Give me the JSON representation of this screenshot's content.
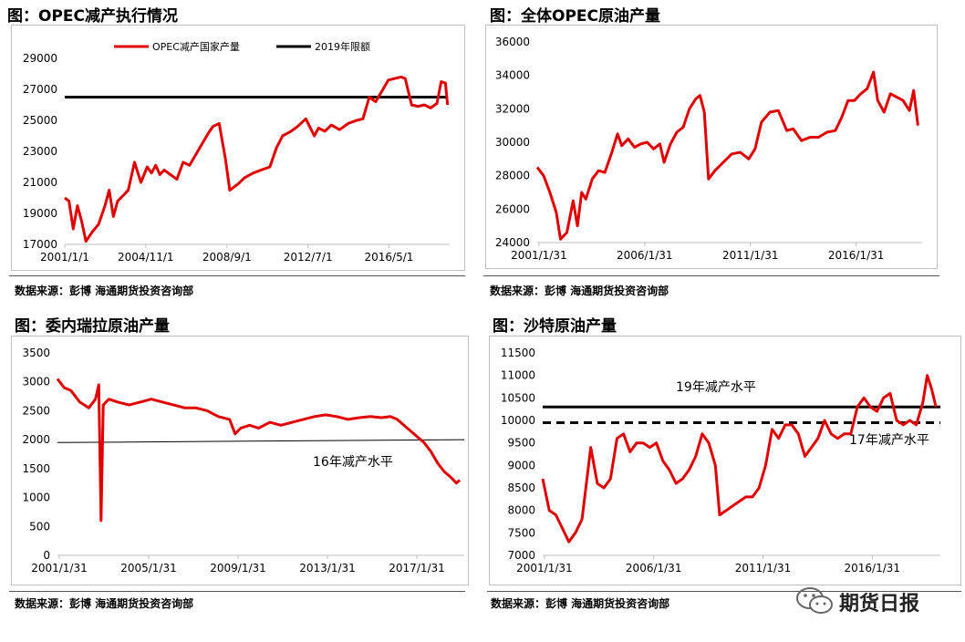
{
  "panels": [
    {
      "title": "图：OPEC减产执行情况",
      "source": "数据来源：彭博   海通期货投资咨询部",
      "chart_data": {
        "type": "line",
        "title": "",
        "ylim": [
          17000,
          29000
        ],
        "yticks": [
          17000,
          19000,
          21000,
          23000,
          25000,
          27000,
          29000
        ],
        "xlim": [
          2001.0,
          2019.2
        ],
        "xticks": [
          {
            "x": 2001.0,
            "label": "2001/1/1"
          },
          {
            "x": 2004.83,
            "label": "2004/11/1"
          },
          {
            "x": 2008.67,
            "label": "2008/9/1"
          },
          {
            "x": 2012.5,
            "label": "2012/7/1"
          },
          {
            "x": 2016.33,
            "label": "2016/5/1"
          }
        ],
        "legend": "top",
        "series": [
          {
            "name": "OPEC减产国家产量",
            "color": "#e00000",
            "x": [
              2001.0,
              2001.2,
              2001.4,
              2001.6,
              2001.8,
              2002.0,
              2002.3,
              2002.6,
              2002.9,
              2003.1,
              2003.3,
              2003.5,
              2003.8,
              2004.0,
              2004.3,
              2004.6,
              2004.9,
              2005.1,
              2005.3,
              2005.5,
              2005.7,
              2006.0,
              2006.3,
              2006.6,
              2006.9,
              2007.2,
              2007.5,
              2007.8,
              2008.0,
              2008.3,
              2008.6,
              2008.8,
              2009.0,
              2009.2,
              2009.5,
              2009.9,
              2010.3,
              2010.7,
              2011.0,
              2011.3,
              2011.7,
              2012.0,
              2012.4,
              2012.8,
              2013.0,
              2013.3,
              2013.6,
              2014.0,
              2014.4,
              2014.8,
              2015.1,
              2015.4,
              2015.7,
              2016.0,
              2016.3,
              2016.6,
              2016.9,
              2017.1,
              2017.4,
              2017.7,
              2018.0,
              2018.3,
              2018.6,
              2018.8,
              2019.0,
              2019.1
            ],
            "y": [
              20000,
              19800,
              18000,
              19500,
              18500,
              17200,
              17800,
              18300,
              19500,
              20500,
              18800,
              19800,
              20200,
              20500,
              22300,
              21000,
              22000,
              21600,
              22100,
              21500,
              21800,
              21500,
              21200,
              22300,
              22100,
              22800,
              23500,
              24200,
              24600,
              24800,
              22500,
              20500,
              20700,
              20900,
              21300,
              21600,
              21800,
              22000,
              23200,
              24000,
              24300,
              24600,
              25100,
              24000,
              24500,
              24300,
              24700,
              24400,
              24800,
              25000,
              25100,
              26500,
              26200,
              26900,
              27600,
              27700,
              27800,
              27700,
              26000,
              25900,
              26000,
              25800,
              26100,
              27500,
              27400,
              26000
            ]
          },
          {
            "name": "2019年限额",
            "color": "#000000",
            "x": [
              2001.0,
              2019.1
            ],
            "y": [
              26500,
              26500
            ]
          }
        ]
      }
    },
    {
      "title": "图：全体OPEC原油产量",
      "source": "数据来源：彭博   海通期货投资咨询部",
      "chart_data": {
        "type": "line",
        "title": "",
        "ylim": [
          24000,
          36000
        ],
        "yticks": [
          24000,
          26000,
          28000,
          30000,
          32000,
          34000,
          36000
        ],
        "xlim": [
          2001.0,
          2019.2
        ],
        "xticks": [
          {
            "x": 2001.08,
            "label": "2001/1/31"
          },
          {
            "x": 2006.08,
            "label": "2006/1/31"
          },
          {
            "x": 2011.08,
            "label": "2011/1/31"
          },
          {
            "x": 2016.08,
            "label": "2016/1/31"
          }
        ],
        "series": [
          {
            "name": "",
            "color": "#e00000",
            "x": [
              2001.0,
              2001.3,
              2001.6,
              2001.9,
              2002.1,
              2002.4,
              2002.7,
              2002.9,
              2003.1,
              2003.3,
              2003.6,
              2003.9,
              2004.2,
              2004.5,
              2004.8,
              2005.0,
              2005.3,
              2005.6,
              2005.9,
              2006.2,
              2006.5,
              2006.8,
              2007.0,
              2007.3,
              2007.6,
              2007.9,
              2008.2,
              2008.5,
              2008.7,
              2008.9,
              2009.1,
              2009.4,
              2009.8,
              2010.2,
              2010.6,
              2011.0,
              2011.3,
              2011.6,
              2012.0,
              2012.4,
              2012.8,
              2013.1,
              2013.5,
              2013.9,
              2014.3,
              2014.7,
              2015.1,
              2015.4,
              2015.7,
              2016.0,
              2016.3,
              2016.6,
              2016.9,
              2017.1,
              2017.4,
              2017.7,
              2018.0,
              2018.3,
              2018.6,
              2018.8,
              2019.0
            ],
            "y": [
              28500,
              28000,
              27000,
              25800,
              24200,
              24600,
              26500,
              25000,
              27000,
              26600,
              27800,
              28300,
              28200,
              29300,
              30500,
              29800,
              30200,
              29700,
              29900,
              30000,
              29600,
              29900,
              28800,
              29900,
              30600,
              30900,
              32000,
              32600,
              32800,
              31800,
              27800,
              28300,
              28800,
              29300,
              29400,
              29000,
              29600,
              31200,
              31800,
              31900,
              30700,
              30800,
              30100,
              30300,
              30300,
              30600,
              30700,
              31500,
              32500,
              32500,
              32900,
              33200,
              34200,
              32500,
              31800,
              32900,
              32700,
              32500,
              31900,
              33100,
              31000
            ]
          }
        ]
      }
    },
    {
      "title": "图：委内瑞拉原油产量",
      "source": "数据来源：彭博   海通期货投资咨询部",
      "annotation": "16年减产水平",
      "chart_data": {
        "type": "line",
        "title": "",
        "ylim": [
          0,
          3500
        ],
        "yticks": [
          0,
          500,
          1000,
          1500,
          2000,
          2500,
          3000,
          3500
        ],
        "xlim": [
          2001.0,
          2019.2
        ],
        "xticks": [
          {
            "x": 2001.08,
            "label": "2001/1/31"
          },
          {
            "x": 2005.08,
            "label": "2005/1/31"
          },
          {
            "x": 2009.08,
            "label": "2009/1/31"
          },
          {
            "x": 2013.08,
            "label": "2013/1/31"
          },
          {
            "x": 2017.08,
            "label": "2017/1/31"
          }
        ],
        "series": [
          {
            "name": "",
            "color": "#e00000",
            "x": [
              2001.0,
              2001.3,
              2001.6,
              2002.0,
              2002.4,
              2002.7,
              2002.85,
              2002.95,
              2003.05,
              2003.3,
              2003.7,
              2004.2,
              2004.7,
              2005.2,
              2005.7,
              2006.2,
              2006.7,
              2007.2,
              2007.7,
              2008.2,
              2008.7,
              2008.95,
              2009.2,
              2009.6,
              2010.0,
              2010.5,
              2011.0,
              2011.5,
              2012.0,
              2012.5,
              2013.0,
              2013.5,
              2014.0,
              2014.5,
              2015.0,
              2015.5,
              2015.9,
              2016.2,
              2016.5,
              2016.8,
              2017.1,
              2017.4,
              2017.7,
              2018.0,
              2018.3,
              2018.6,
              2018.85,
              2019.0
            ],
            "y": [
              3050,
              2900,
              2850,
              2650,
              2550,
              2700,
              2950,
              600,
              2600,
              2700,
              2650,
              2600,
              2650,
              2700,
              2650,
              2600,
              2550,
              2550,
              2500,
              2400,
              2350,
              2100,
              2200,
              2250,
              2200,
              2300,
              2250,
              2300,
              2350,
              2400,
              2430,
              2400,
              2350,
              2380,
              2400,
              2380,
              2400,
              2350,
              2250,
              2150,
              2050,
              1950,
              1800,
              1600,
              1450,
              1350,
              1250,
              1300
            ]
          },
          {
            "name": "",
            "color": "#000000",
            "x": [
              2001.0,
              2019.2
            ],
            "y": [
              1950,
              2000
            ]
          }
        ]
      }
    },
    {
      "title": "图：沙特原油产量",
      "source": "数据来源：彭博   海通期货投资咨询部",
      "annotation_top": "19年减产水平",
      "annotation_bottom": "17年减产水平",
      "chart_data": {
        "type": "line",
        "title": "",
        "ylim": [
          7000,
          11500
        ],
        "yticks": [
          7000,
          7500,
          8000,
          8500,
          9000,
          9500,
          10000,
          10500,
          11000,
          11500
        ],
        "xlim": [
          2001.0,
          2019.2
        ],
        "xticks": [
          {
            "x": 2001.08,
            "label": "2001/1/31"
          },
          {
            "x": 2006.08,
            "label": "2006/1/31"
          },
          {
            "x": 2011.08,
            "label": "2011/1/31"
          },
          {
            "x": 2016.08,
            "label": "2016/1/31"
          }
        ],
        "series": [
          {
            "name": "",
            "color": "#e00000",
            "x": [
              2001.0,
              2001.3,
              2001.6,
              2001.9,
              2002.2,
              2002.5,
              2002.8,
              2003.0,
              2003.2,
              2003.5,
              2003.8,
              2004.1,
              2004.4,
              2004.7,
              2005.0,
              2005.3,
              2005.6,
              2005.9,
              2006.2,
              2006.5,
              2006.8,
              2007.1,
              2007.4,
              2007.7,
              2008.0,
              2008.3,
              2008.6,
              2008.9,
              2009.1,
              2009.4,
              2009.7,
              2010.0,
              2010.3,
              2010.6,
              2010.9,
              2011.2,
              2011.5,
              2011.8,
              2012.1,
              2012.4,
              2012.7,
              2013.0,
              2013.3,
              2013.6,
              2013.9,
              2014.2,
              2014.5,
              2014.8,
              2015.1,
              2015.4,
              2015.7,
              2016.0,
              2016.3,
              2016.6,
              2016.9,
              2017.2,
              2017.5,
              2017.8,
              2018.1,
              2018.4,
              2018.6,
              2018.8,
              2019.0
            ],
            "y": [
              8700,
              8000,
              7900,
              7600,
              7300,
              7500,
              7800,
              8600,
              9400,
              8600,
              8500,
              8700,
              9600,
              9700,
              9300,
              9500,
              9500,
              9400,
              9500,
              9100,
              8900,
              8600,
              8700,
              8900,
              9200,
              9700,
              9500,
              9000,
              7900,
              8000,
              8100,
              8200,
              8300,
              8300,
              8500,
              9000,
              9800,
              9600,
              9900,
              9900,
              9700,
              9200,
              9400,
              9600,
              10000,
              9700,
              9600,
              9700,
              9700,
              10300,
              10500,
              10300,
              10200,
              10500,
              10600,
              10000,
              9900,
              10000,
              9900,
              10400,
              11000,
              10700,
              10300
            ]
          },
          {
            "name": "",
            "color": "#000000",
            "x": [
              2001.0,
              2019.2
            ],
            "y": [
              10300,
              10300
            ]
          },
          {
            "name": "",
            "color": "#000000",
            "dashed": true,
            "x": [
              2001.0,
              2019.2
            ],
            "y": [
              9950,
              9950
            ]
          }
        ]
      }
    }
  ],
  "watermark": {
    "text": "期货日报",
    "icon": "wechat-icon"
  },
  "colors": {
    "series_red": "#e00000",
    "limit_black": "#000000",
    "axis": "#d9d9d9",
    "frame": "#bfbfbf"
  }
}
